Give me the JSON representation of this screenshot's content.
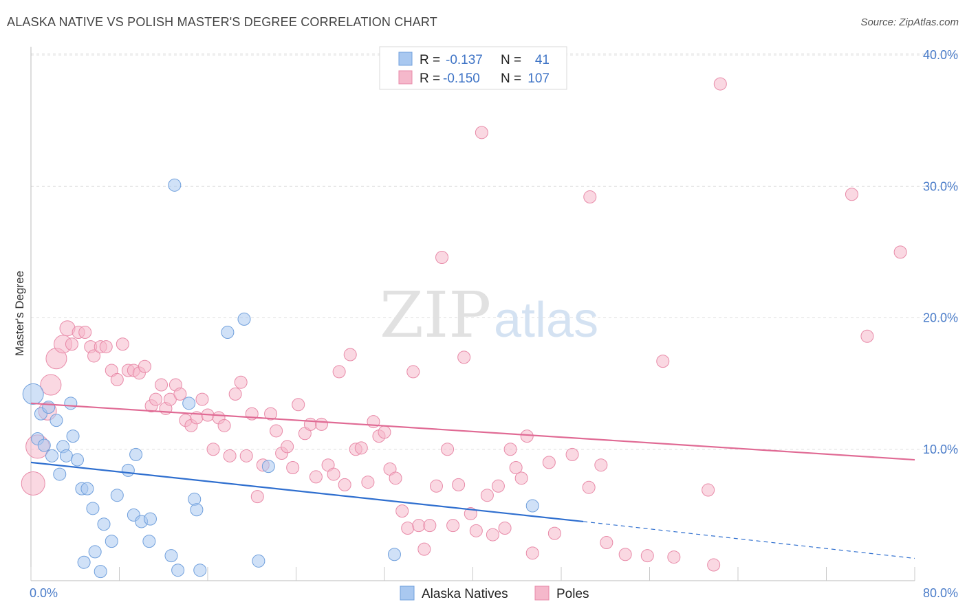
{
  "header": {
    "title": "ALASKA NATIVE VS POLISH MASTER'S DEGREE CORRELATION CHART",
    "source": "Source: ZipAtlas.com"
  },
  "legend": {
    "rows": [
      {
        "r_label": "R =",
        "r_value": "-0.137",
        "n_label": "N =",
        "n_value": "41",
        "color": "#a9c8f0"
      },
      {
        "r_label": "R =",
        "r_value": "-0.150",
        "n_label": "N =",
        "n_value": "107",
        "color": "#f5b8cb"
      }
    ]
  },
  "bottom_legend": [
    {
      "label": "Alaska Natives",
      "color": "#a9c8f0"
    },
    {
      "label": "Poles",
      "color": "#f5b8cb"
    }
  ],
  "watermark": {
    "zip": "ZIP",
    "atlas": "atlas"
  },
  "chart_data": {
    "type": "scatter",
    "xlabel": "",
    "ylabel": "Master's Degree",
    "xlim": [
      0,
      80
    ],
    "ylim": [
      0,
      40
    ],
    "x_tick_labels": [
      {
        "value": 0,
        "label": "0.0%"
      },
      {
        "value": 80,
        "label": "80.0%"
      }
    ],
    "y_tick_labels": [
      {
        "value": 10,
        "label": "10.0%"
      },
      {
        "value": 20,
        "label": "20.0%"
      },
      {
        "value": 30,
        "label": "30.0%"
      },
      {
        "value": 40,
        "label": "40.0%"
      }
    ],
    "grid": true,
    "legend_position": "top-center",
    "series": [
      {
        "name": "Alaska Natives",
        "color": "#a9c8f0",
        "stroke": "#6f9fdc",
        "trend": {
          "x": [
            0,
            50
          ],
          "y": [
            9.0,
            4.5
          ],
          "color": "#2f6fcf"
        },
        "trend_dashed": {
          "x": [
            50,
            80
          ],
          "y": [
            4.5,
            1.7
          ],
          "color": "#2f6fcf"
        },
        "points": [
          [
            0.2,
            14.2,
            15
          ],
          [
            0.6,
            10.8,
            9
          ],
          [
            0.9,
            12.7,
            9
          ],
          [
            1.2,
            10.3,
            9
          ],
          [
            1.6,
            13.2,
            9
          ],
          [
            1.9,
            9.5,
            9
          ],
          [
            2.3,
            12.2,
            9
          ],
          [
            2.6,
            8.1,
            9
          ],
          [
            2.9,
            10.2,
            9
          ],
          [
            3.2,
            9.5,
            9
          ],
          [
            3.6,
            13.5,
            9
          ],
          [
            3.8,
            11.0,
            9
          ],
          [
            4.2,
            9.2,
            9
          ],
          [
            4.6,
            7.0,
            9
          ],
          [
            5.1,
            7.0,
            9
          ],
          [
            5.6,
            5.5,
            9
          ],
          [
            6.6,
            4.3,
            9
          ],
          [
            7.3,
            3.0,
            9
          ],
          [
            5.8,
            2.2,
            9
          ],
          [
            4.8,
            1.4,
            9
          ],
          [
            6.3,
            0.7,
            9
          ],
          [
            7.8,
            6.5,
            9
          ],
          [
            8.8,
            8.4,
            9
          ],
          [
            9.3,
            5.0,
            9
          ],
          [
            9.5,
            9.6,
            9
          ],
          [
            10.0,
            4.5,
            9
          ],
          [
            10.8,
            4.7,
            9
          ],
          [
            10.7,
            3.0,
            9
          ],
          [
            12.7,
            1.9,
            9
          ],
          [
            13.3,
            0.8,
            9
          ],
          [
            13.0,
            30.1,
            9
          ],
          [
            14.3,
            13.5,
            9
          ],
          [
            14.8,
            6.2,
            9
          ],
          [
            15.0,
            5.4,
            9
          ],
          [
            15.3,
            0.8,
            9
          ],
          [
            17.8,
            18.9,
            9
          ],
          [
            19.3,
            19.9,
            9
          ],
          [
            20.6,
            1.5,
            9
          ],
          [
            21.5,
            8.7,
            9
          ],
          [
            32.9,
            2.0,
            9
          ],
          [
            45.4,
            5.7,
            9
          ]
        ]
      },
      {
        "name": "Poles",
        "color": "#f5b8cb",
        "stroke": "#e88aa8",
        "trend": {
          "x": [
            0,
            80
          ],
          "y": [
            13.5,
            9.2
          ],
          "color": "#e06a94"
        },
        "points": [
          [
            0.2,
            7.4,
            17
          ],
          [
            0.6,
            10.2,
            17
          ],
          [
            1.5,
            12.9,
            13
          ],
          [
            1.8,
            14.9,
            15
          ],
          [
            2.3,
            16.9,
            15
          ],
          [
            2.9,
            18.0,
            13
          ],
          [
            3.3,
            19.2,
            11
          ],
          [
            3.7,
            18.0,
            9
          ],
          [
            4.3,
            18.9,
            9
          ],
          [
            4.9,
            18.9,
            9
          ],
          [
            5.4,
            17.8,
            9
          ],
          [
            5.7,
            17.1,
            9
          ],
          [
            6.3,
            17.8,
            9
          ],
          [
            6.8,
            17.8,
            9
          ],
          [
            7.3,
            16.0,
            9
          ],
          [
            7.8,
            15.3,
            9
          ],
          [
            8.3,
            18.0,
            9
          ],
          [
            8.8,
            16.0,
            9
          ],
          [
            9.3,
            16.0,
            9
          ],
          [
            9.8,
            15.8,
            9
          ],
          [
            10.3,
            16.3,
            9
          ],
          [
            10.9,
            13.3,
            9
          ],
          [
            11.3,
            13.8,
            9
          ],
          [
            11.8,
            14.9,
            9
          ],
          [
            12.2,
            13.1,
            9
          ],
          [
            12.6,
            13.8,
            9
          ],
          [
            13.1,
            14.9,
            9
          ],
          [
            13.5,
            14.2,
            9
          ],
          [
            14.0,
            12.2,
            9
          ],
          [
            14.5,
            11.8,
            9
          ],
          [
            15.0,
            12.4,
            9
          ],
          [
            15.5,
            13.8,
            9
          ],
          [
            16.0,
            12.6,
            9
          ],
          [
            16.5,
            10.0,
            9
          ],
          [
            17.0,
            12.4,
            9
          ],
          [
            17.5,
            11.8,
            9
          ],
          [
            18.0,
            9.5,
            9
          ],
          [
            18.5,
            14.2,
            9
          ],
          [
            19.0,
            15.1,
            9
          ],
          [
            19.5,
            9.5,
            9
          ],
          [
            20.0,
            12.7,
            9
          ],
          [
            20.5,
            6.4,
            9
          ],
          [
            21.0,
            8.8,
            9
          ],
          [
            21.7,
            12.7,
            9
          ],
          [
            22.2,
            11.4,
            9
          ],
          [
            22.7,
            9.7,
            9
          ],
          [
            23.2,
            10.2,
            9
          ],
          [
            23.7,
            8.6,
            9
          ],
          [
            24.2,
            13.4,
            9
          ],
          [
            24.8,
            11.2,
            9
          ],
          [
            25.3,
            11.9,
            9
          ],
          [
            25.8,
            7.9,
            9
          ],
          [
            26.3,
            11.9,
            9
          ],
          [
            26.9,
            8.8,
            9
          ],
          [
            27.4,
            8.1,
            9
          ],
          [
            27.9,
            15.9,
            9
          ],
          [
            28.4,
            7.3,
            9
          ],
          [
            28.9,
            17.2,
            9
          ],
          [
            29.4,
            10.0,
            9
          ],
          [
            29.9,
            10.1,
            9
          ],
          [
            30.5,
            7.5,
            9
          ],
          [
            31.0,
            12.1,
            9
          ],
          [
            31.5,
            11.0,
            9
          ],
          [
            32.0,
            11.3,
            9
          ],
          [
            32.5,
            8.5,
            9
          ],
          [
            33.0,
            7.8,
            9
          ],
          [
            33.6,
            5.3,
            9
          ],
          [
            34.1,
            4.0,
            9
          ],
          [
            34.6,
            15.9,
            9
          ],
          [
            35.1,
            4.2,
            9
          ],
          [
            35.6,
            2.4,
            9
          ],
          [
            36.1,
            4.2,
            9
          ],
          [
            36.7,
            7.2,
            9
          ],
          [
            37.2,
            24.6,
            9
          ],
          [
            37.7,
            10.0,
            9
          ],
          [
            38.2,
            4.2,
            9
          ],
          [
            38.7,
            7.3,
            9
          ],
          [
            39.2,
            17.0,
            9
          ],
          [
            39.8,
            5.1,
            9
          ],
          [
            40.3,
            3.8,
            9
          ],
          [
            40.8,
            34.1,
            9
          ],
          [
            41.3,
            6.5,
            9
          ],
          [
            41.8,
            3.5,
            9
          ],
          [
            42.3,
            7.2,
            9
          ],
          [
            42.9,
            4.0,
            9
          ],
          [
            43.4,
            10.0,
            9
          ],
          [
            43.9,
            8.6,
            9
          ],
          [
            44.4,
            7.8,
            9
          ],
          [
            44.9,
            11.0,
            9
          ],
          [
            45.4,
            2.1,
            9
          ],
          [
            46.9,
            9.0,
            9
          ],
          [
            47.4,
            3.6,
            9
          ],
          [
            49.0,
            9.6,
            9
          ],
          [
            50.5,
            7.1,
            9
          ],
          [
            50.6,
            29.2,
            9
          ],
          [
            51.6,
            8.8,
            9
          ],
          [
            52.1,
            2.9,
            9
          ],
          [
            53.8,
            2.0,
            9
          ],
          [
            55.8,
            1.9,
            9
          ],
          [
            57.2,
            16.7,
            9
          ],
          [
            58.2,
            1.8,
            9
          ],
          [
            61.3,
            6.9,
            9
          ],
          [
            61.8,
            1.2,
            9
          ],
          [
            62.4,
            37.8,
            9
          ],
          [
            75.7,
            18.6,
            9
          ],
          [
            74.3,
            29.4,
            9
          ],
          [
            78.7,
            25.0,
            9
          ]
        ]
      }
    ]
  }
}
